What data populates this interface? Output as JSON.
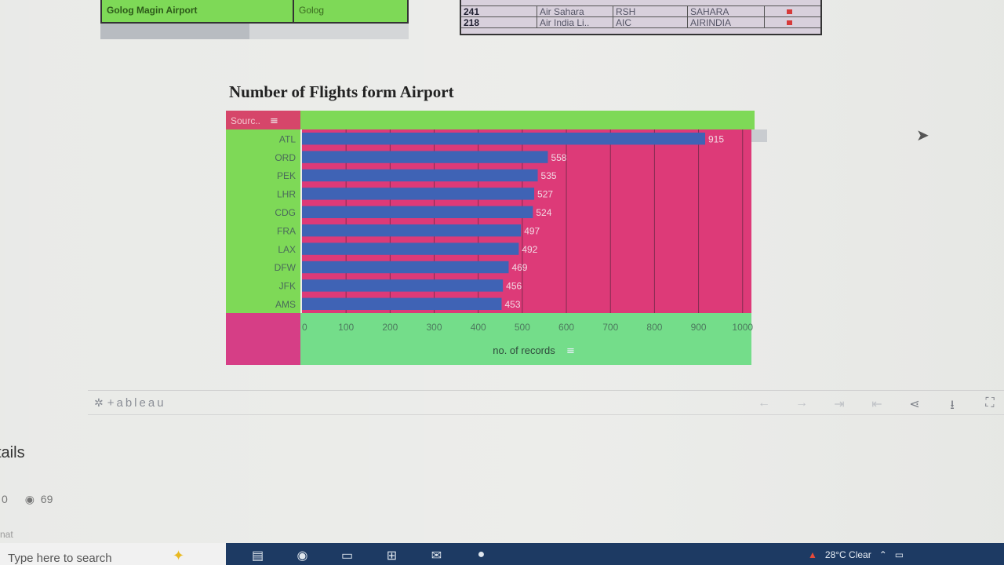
{
  "top_left_table": {
    "cell_1": "Golog Magin Airport",
    "cell_2": "Golog"
  },
  "airline_table": {
    "rows": [
      {
        "id": "241",
        "name": "Air Sahara",
        "code": "RSH",
        "callsign": "SAHARA"
      },
      {
        "id": "218",
        "name": "Air India Li..",
        "code": "AIC",
        "callsign": "AIRINDIA"
      }
    ]
  },
  "dashboard": {
    "title": "Number of Flights form Airport"
  },
  "chart_data": {
    "type": "bar",
    "orientation": "horizontal",
    "row_header": "Sourc..",
    "categories": [
      "ATL",
      "ORD",
      "PEK",
      "LHR",
      "CDG",
      "FRA",
      "LAX",
      "DFW",
      "JFK",
      "AMS"
    ],
    "values": [
      915,
      558,
      535,
      527,
      524,
      497,
      492,
      469,
      456,
      453
    ],
    "x_ticks": [
      0,
      100,
      200,
      300,
      400,
      500,
      600,
      700,
      800,
      900,
      1000
    ],
    "xlabel": "no. of records",
    "xlim": [
      0,
      1020
    ],
    "grid": true,
    "colors": {
      "bar": "#3f63b5",
      "plot_bg": "#dd3a78",
      "header_bg": "#7ed957",
      "row_header_bg": "#d6466a",
      "axis_bg": "#74dd8a",
      "corner_bg": "#d63e86",
      "label_text": "#4a6a5a",
      "value_text": "#f2d9e4"
    }
  },
  "tableau_toolbar": {
    "logo": "+ableau",
    "icons": [
      "undo-icon",
      "redo-icon",
      "revert-icon",
      "pause-icon",
      "share-icon",
      "download-icon",
      "fullscreen-icon"
    ]
  },
  "page": {
    "details_heading": "tails",
    "likes": "0",
    "views": "69",
    "faint_label": "nat"
  },
  "taskbar": {
    "search_placeholder": "Type here to search",
    "weather": "28°C  Clear"
  }
}
